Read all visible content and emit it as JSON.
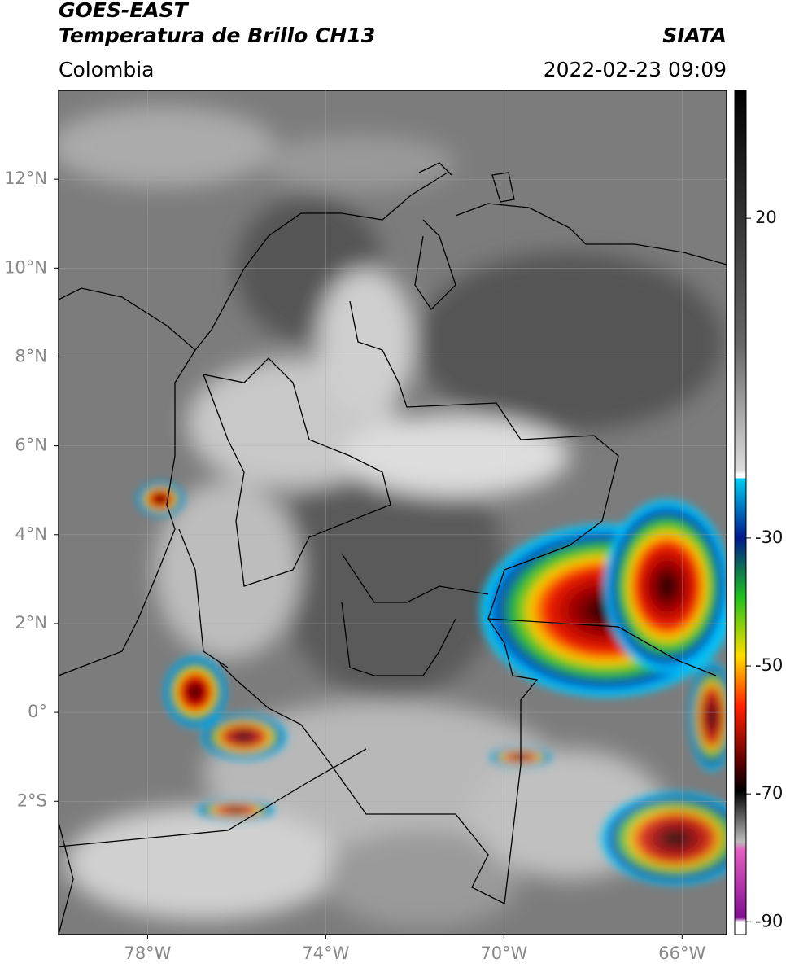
{
  "header": {
    "title": "GOES-EAST",
    "subtitle": "Temperatura de Brillo CH13",
    "region": "Colombia",
    "source": "SIATA",
    "timestamp": "2022-02-23 09:09"
  },
  "map": {
    "xlim": [
      -80,
      -65
    ],
    "ylim": [
      -5,
      14
    ],
    "xticks": [
      {
        "value": -78,
        "label": "78°W"
      },
      {
        "value": -74,
        "label": "74°W"
      },
      {
        "value": -70,
        "label": "70°W"
      },
      {
        "value": -66,
        "label": "66°W"
      }
    ],
    "yticks": [
      {
        "value": 12,
        "label": "12°N"
      },
      {
        "value": 10,
        "label": "10°N"
      },
      {
        "value": 8,
        "label": "8°N"
      },
      {
        "value": 6,
        "label": "6°N"
      },
      {
        "value": 4,
        "label": "4°N"
      },
      {
        "value": 2,
        "label": "2°N"
      },
      {
        "value": 0,
        "label": "0°"
      },
      {
        "value": -2,
        "label": "2°S"
      }
    ]
  },
  "colorbar": {
    "lim": [
      -92,
      40
    ],
    "ticks": [
      20,
      -30,
      -50,
      -70,
      -90
    ]
  }
}
